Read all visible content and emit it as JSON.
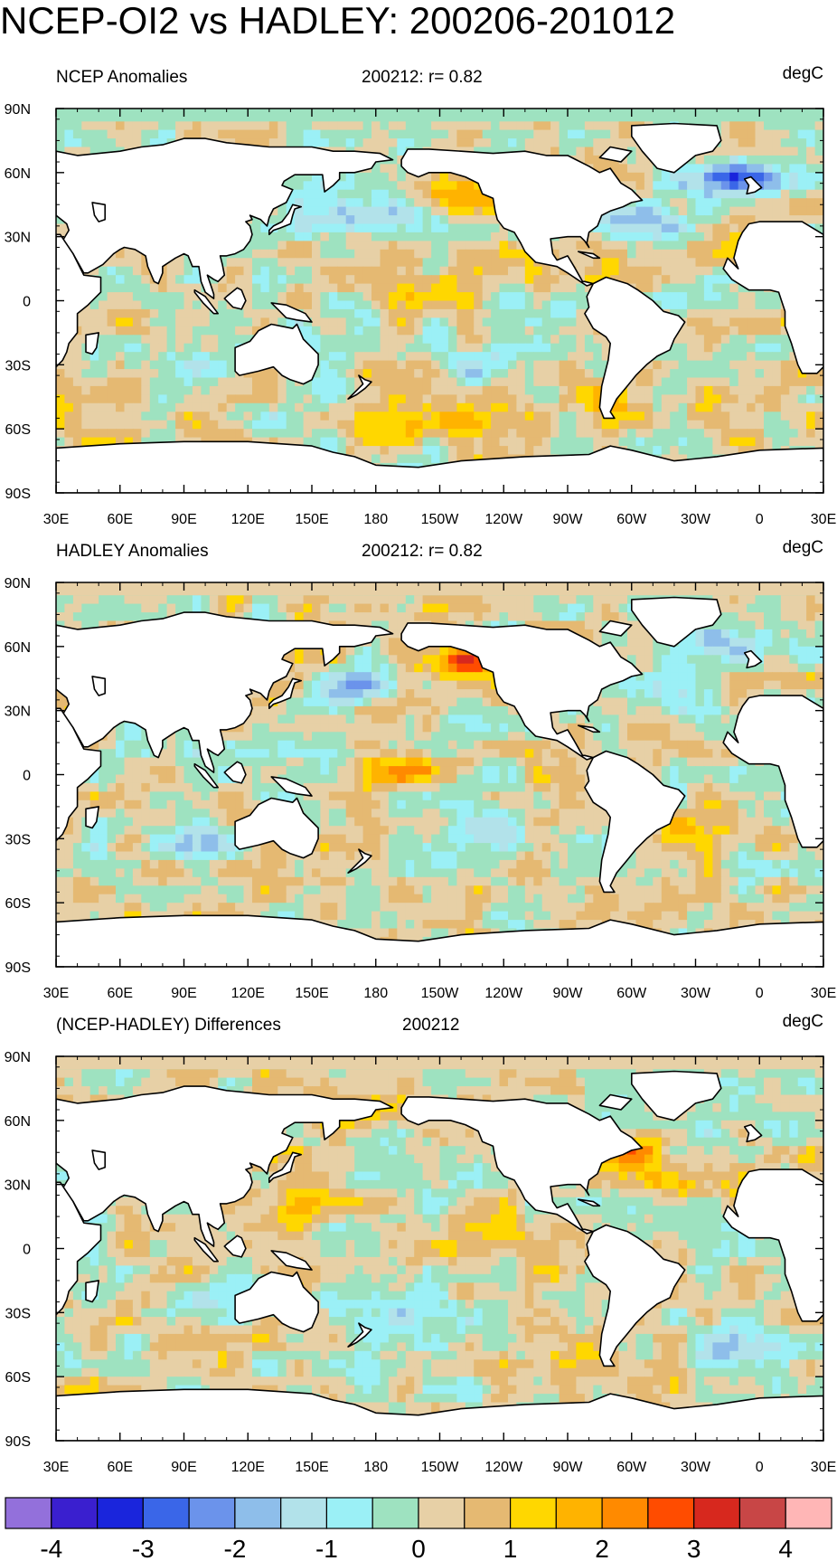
{
  "title": "NCEP-OI2 vs HADLEY: 200206-201012",
  "panels": [
    {
      "left_label": "NCEP Anomalies",
      "center_label": "200212: r= 0.82",
      "right_label": "degC",
      "hotspots": [
        {
          "lon": 202,
          "lat": 2,
          "level": 1.8
        },
        {
          "lon": 218,
          "lat": 52,
          "level": 2.5
        },
        {
          "lon": 178,
          "lat": 40,
          "level": -2.2
        },
        {
          "lon": 300,
          "lat": 38,
          "level": -2.0
        },
        {
          "lon": 350,
          "lat": 58,
          "level": -2.5
        },
        {
          "lon": 230,
          "lat": -30,
          "level": -1.2
        },
        {
          "lon": 95,
          "lat": -25,
          "level": -1.3
        },
        {
          "lon": 210,
          "lat": -58,
          "level": 1.7
        },
        {
          "lon": 285,
          "lat": -45,
          "level": 1.2
        }
      ]
    },
    {
      "left_label": "HADLEY Anomalies",
      "center_label": "200212: r= 0.82",
      "right_label": "degC",
      "hotspots": [
        {
          "lon": 200,
          "lat": 3,
          "level": 2.0
        },
        {
          "lon": 218,
          "lat": 53,
          "level": 2.3
        },
        {
          "lon": 170,
          "lat": 40,
          "level": -1.5
        },
        {
          "lon": 300,
          "lat": 40,
          "level": -1.3
        },
        {
          "lon": 345,
          "lat": 60,
          "level": -1.8
        },
        {
          "lon": 225,
          "lat": -30,
          "level": -1.2
        },
        {
          "lon": 95,
          "lat": -30,
          "level": -1.3
        },
        {
          "lon": 335,
          "lat": -25,
          "level": 1.3
        }
      ]
    },
    {
      "left_label": "(NCEP-HADLEY) Differences",
      "center_label": "200212",
      "right_label": "degC",
      "hotspots": [
        {
          "lon": 300,
          "lat": 45,
          "level": 1.8
        },
        {
          "lon": 320,
          "lat": 30,
          "level": 1.3
        },
        {
          "lon": 140,
          "lat": 20,
          "level": 1.2
        },
        {
          "lon": 200,
          "lat": -30,
          "level": -1.0
        },
        {
          "lon": 350,
          "lat": -45,
          "level": -2.2
        },
        {
          "lon": 170,
          "lat": 60,
          "level": 1.0
        },
        {
          "lon": 100,
          "lat": -25,
          "level": -0.9
        },
        {
          "lon": 240,
          "lat": 10,
          "level": 0.9
        }
      ]
    }
  ],
  "lat_labels": [
    "90N",
    "60N",
    "30N",
    "0",
    "30S",
    "60S",
    "90S"
  ],
  "lon_labels": [
    "30E",
    "60E",
    "90E",
    "120E",
    "150E",
    "180",
    "150W",
    "120W",
    "90W",
    "60W",
    "30W",
    "0",
    "30E"
  ],
  "colorbar": {
    "colors": [
      "#9370db",
      "#3a1fcf",
      "#1a25dc",
      "#3a66e8",
      "#6b93eb",
      "#8ebeea",
      "#b2e2ea",
      "#9bf0f6",
      "#9ee2c0",
      "#e7d0a6",
      "#e5b972",
      "#ffd700",
      "#ffb300",
      "#ff8a00",
      "#ff4c00",
      "#d7281e",
      "#c84646",
      "#ffb6b6"
    ],
    "labels": [
      "-4",
      "-3",
      "-2",
      "-1",
      "0",
      "1",
      "2",
      "3",
      "4"
    ]
  }
}
